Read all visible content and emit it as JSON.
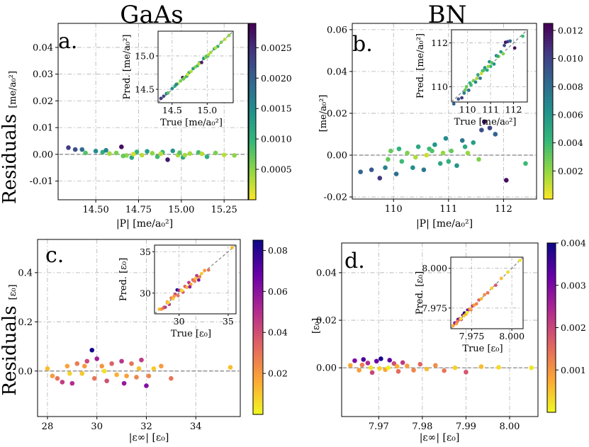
{
  "figure": {
    "col_titles": [
      "GaAs",
      "BN"
    ],
    "ylabel_main": "Residuals",
    "ylabel_P_unit": "[me/a₀²]",
    "ylabel_E_unit": "[ε₀]",
    "xlabel_P": "|P| [me/a₀²]",
    "xlabel_E": "|ε∞| [ε₀]",
    "inset_xlabel_P": "True [me/a₀²]",
    "inset_ylabel_P": "Pred. [me/a₀²]",
    "inset_xlabel_E": "True [ε₀]",
    "inset_ylabel_E": "Pred. [ε₀]",
    "colormaps": {
      "viridis_r": [
        "#fde725",
        "#90d743",
        "#35b779",
        "#21918c",
        "#31688e",
        "#443983",
        "#440154"
      ],
      "plasma_r": [
        "#f0f921",
        "#fca636",
        "#e16462",
        "#b12a90",
        "#6a00a8",
        "#0d0887"
      ]
    },
    "grid_color": "#b0b0b0",
    "zero_line_color": "#808080"
  },
  "chart_data": [
    {
      "panel": "a.",
      "type": "scatter",
      "material": "GaAs",
      "cmap": "viridis_r",
      "title": "GaAs",
      "xlabel": "|P| [me/a₀²]",
      "ylabel": "Residuals [me/a₀²]",
      "xlim": [
        14.28,
        15.39
      ],
      "ylim": [
        -0.017,
        0.049
      ],
      "xticks": [
        14.5,
        14.75,
        15.0,
        15.25
      ],
      "xtick_labels": [
        "14.50",
        "14.75",
        "15.00",
        "15.25"
      ],
      "yticks": [
        -0.01,
        0.0,
        0.01,
        0.02,
        0.03,
        0.04
      ],
      "ytick_labels": [
        "-0.01",
        "0.00",
        "0.01",
        "0.02",
        "0.03",
        "0.04"
      ],
      "colorbar": {
        "range": [
          0.0,
          0.0029
        ],
        "ticks": [
          0.0005,
          0.001,
          0.0015,
          0.002,
          0.0025
        ],
        "tick_labels": [
          "0.0005",
          "0.0010",
          "0.0015",
          "0.0020",
          "0.0025"
        ]
      },
      "series": [
        {
          "name": "residuals",
          "x": [
            14.34,
            14.38,
            14.42,
            14.44,
            14.5,
            14.54,
            14.58,
            14.62,
            14.65,
            14.68,
            14.71,
            14.74,
            14.77,
            14.8,
            14.83,
            14.86,
            14.89,
            14.92,
            14.95,
            14.98,
            15.01,
            15.05,
            15.1,
            15.15,
            15.2,
            15.25,
            15.31,
            14.56,
            14.66,
            14.72,
            14.88,
            14.99,
            15.02,
            15.12
          ],
          "y": [
            0.0025,
            0.0018,
            0.0018,
            0.0005,
            0.0012,
            0.0008,
            0.0003,
            0.0005,
            0.0028,
            -0.0004,
            -0.0012,
            0.0009,
            -0.0003,
            0.0011,
            0.0004,
            -0.0009,
            0.0008,
            -0.002,
            0.0013,
            -0.0003,
            -0.0011,
            0.0003,
            0.0007,
            -0.0009,
            0.0005,
            -0.0002,
            -0.0004,
            0.0015,
            -0.0006,
            0.0001,
            0.0002,
            0.0006,
            -0.0003,
            0.0002
          ],
          "c": [
            0.0024,
            0.0022,
            0.0019,
            0.0008,
            0.0015,
            0.0011,
            0.0004,
            0.0006,
            0.0028,
            0.0005,
            0.0012,
            0.001,
            0.0003,
            0.0013,
            0.0005,
            0.0009,
            0.001,
            0.0027,
            0.0014,
            0.0004,
            0.0012,
            0.0004,
            0.0009,
            0.0011,
            0.0006,
            0.0003,
            0.0005,
            0.0016,
            0.0007,
            0.0002,
            0.0003,
            0.0008,
            0.0004,
            0.0003
          ]
        }
      ],
      "inset": {
        "type": "scatter",
        "xlabel": "True [me/a₀²]",
        "ylabel": "Pred. [me/a₀²]",
        "xlim": [
          14.3,
          15.37
        ],
        "ylim": [
          14.3,
          15.37
        ],
        "xticks": [
          14.5,
          15.0
        ],
        "xtick_labels": [
          "14.5",
          "15.0"
        ],
        "yticks": [
          14.5,
          15.0
        ],
        "ytick_labels": [
          "14.5",
          "15.0"
        ]
      }
    },
    {
      "panel": "b.",
      "type": "scatter",
      "material": "BN",
      "cmap": "viridis_r",
      "title": "BN",
      "xlabel": "|P| [me/a₀²]",
      "ylabel": "[me/a₀²]",
      "xlim": [
        109.25,
        112.6
      ],
      "ylim": [
        -0.021,
        0.063
      ],
      "xticks": [
        110,
        111,
        112
      ],
      "xtick_labels": [
        "110",
        "111",
        "112"
      ],
      "yticks": [
        -0.02,
        0.0,
        0.02,
        0.04,
        0.06
      ],
      "ytick_labels": [
        "-0.02",
        "0.00",
        "0.02",
        "0.04",
        "0.06"
      ],
      "colorbar": {
        "range": [
          0.0,
          0.0125
        ],
        "ticks": [
          0.002,
          0.004,
          0.006,
          0.008,
          0.01,
          0.012
        ],
        "tick_labels": [
          "0.002",
          "0.004",
          "0.006",
          "0.008",
          "0.010",
          "0.012"
        ]
      },
      "series": [
        {
          "name": "residuals",
          "x": [
            109.4,
            109.6,
            109.75,
            109.85,
            109.95,
            110.05,
            110.15,
            110.25,
            110.35,
            110.45,
            110.55,
            110.65,
            110.75,
            110.85,
            110.95,
            111.05,
            111.15,
            111.25,
            111.35,
            111.45,
            111.6,
            111.75,
            111.85,
            112.05,
            112.4,
            109.9,
            110.1,
            110.4,
            110.7,
            111.0,
            111.3,
            111.55,
            111.65,
            110.6,
            110.9
          ],
          "y": [
            -0.008,
            -0.007,
            -0.011,
            -0.006,
            0.002,
            -0.009,
            -0.003,
            0.001,
            -0.006,
            0.004,
            -0.007,
            0.003,
            0.005,
            -0.004,
            0.008,
            0.002,
            -0.005,
            0.007,
            0.001,
            0.006,
            0.012,
            0.013,
            0.01,
            -0.012,
            -0.004,
            -0.002,
            0.003,
            -0.001,
            0.002,
            -0.003,
            0.004,
            -0.002,
            0.016,
            0.0,
            0.001
          ],
          "c": [
            0.0085,
            0.009,
            0.0105,
            0.007,
            0.003,
            0.008,
            0.004,
            0.0025,
            0.0065,
            0.005,
            0.0075,
            0.004,
            0.006,
            0.005,
            0.0065,
            0.003,
            0.006,
            0.0075,
            0.002,
            0.0055,
            0.0095,
            0.01,
            0.0085,
            0.012,
            0.004,
            0.003,
            0.0045,
            0.0015,
            0.0035,
            0.0045,
            0.005,
            0.0025,
            0.0118,
            0.001,
            0.002
          ]
        }
      ],
      "inset": {
        "type": "scatter",
        "xlabel": "True [me/a₀²]",
        "ylabel": "Pred. [me/a₀²]",
        "xlim": [
          109.3,
          112.6
        ],
        "ylim": [
          109.3,
          112.6
        ],
        "xticks": [
          110,
          111,
          112
        ],
        "xtick_labels": [
          "110",
          "111",
          "112"
        ],
        "yticks": [
          110,
          112
        ],
        "ytick_labels": [
          "110",
          "112"
        ]
      }
    },
    {
      "panel": "c.",
      "type": "scatter",
      "material": "GaAs",
      "cmap": "plasma_r",
      "xlabel": "|ε∞| [ε₀]",
      "ylabel": "Residuals [ε₀]",
      "xlim": [
        27.6,
        35.8
      ],
      "ylim": [
        -0.185,
        0.535
      ],
      "xticks": [
        28,
        30,
        32,
        34
      ],
      "xtick_labels": [
        "28",
        "30",
        "32",
        "34"
      ],
      "yticks": [
        0.0,
        0.2,
        0.4
      ],
      "ytick_labels": [
        "0.0",
        "0.2",
        "0.4"
      ],
      "colorbar": {
        "range": [
          0.0,
          0.085
        ],
        "ticks": [
          0.02,
          0.04,
          0.06,
          0.08
        ],
        "tick_labels": [
          "0.02",
          "0.04",
          "0.06",
          "0.08"
        ]
      },
      "series": [
        {
          "name": "residuals",
          "x": [
            28.0,
            28.2,
            28.4,
            28.6,
            28.8,
            29.0,
            29.2,
            29.4,
            29.6,
            29.8,
            29.9,
            30.0,
            30.2,
            30.4,
            30.6,
            30.8,
            31.0,
            31.2,
            31.4,
            31.6,
            31.8,
            32.0,
            32.3,
            32.6,
            33.0,
            35.4,
            28.9,
            29.5,
            30.3,
            31.1,
            31.7,
            32.1
          ],
          "y": [
            0.01,
            -0.02,
            -0.03,
            -0.045,
            0.02,
            -0.05,
            0.03,
            -0.01,
            0.04,
            0.085,
            -0.03,
            0.05,
            0.02,
            -0.04,
            0.03,
            -0.015,
            0.04,
            -0.02,
            0.03,
            -0.025,
            0.045,
            -0.06,
            0.01,
            0.02,
            -0.03,
            0.015,
            -0.01,
            0.02,
            0.0,
            -0.05,
            0.01,
            -0.02
          ],
          "c": [
            0.012,
            0.02,
            0.03,
            0.045,
            0.018,
            0.05,
            0.028,
            0.01,
            0.042,
            0.084,
            0.03,
            0.055,
            0.022,
            0.04,
            0.035,
            0.015,
            0.048,
            0.018,
            0.03,
            0.026,
            0.046,
            0.062,
            0.01,
            0.02,
            0.03,
            0.012,
            0.008,
            0.02,
            0.005,
            0.058,
            0.012,
            0.025
          ]
        }
      ],
      "inset": {
        "type": "scatter",
        "xlabel": "True [ε₀]",
        "ylabel": "Pred. [ε₀]",
        "xlim": [
          27.5,
          35.8
        ],
        "ylim": [
          27.5,
          35.8
        ],
        "xticks": [
          30,
          35
        ],
        "xtick_labels": [
          "30",
          "35"
        ],
        "yticks": [
          30,
          35
        ],
        "ytick_labels": [
          "30",
          "35"
        ]
      }
    },
    {
      "panel": "d.",
      "type": "scatter",
      "material": "BN",
      "cmap": "plasma_r",
      "xlabel": "|ε∞| [ε₀]",
      "ylabel": "[ε₀]",
      "xlim": [
        7.9615,
        8.0065
      ],
      "ylim": [
        -0.0205,
        0.0525
      ],
      "xticks": [
        7.97,
        7.98,
        7.99,
        8.0
      ],
      "xtick_labels": [
        "7.97",
        "7.98",
        "7.99",
        "8.00"
      ],
      "yticks": [
        0.0,
        0.02,
        0.04
      ],
      "ytick_labels": [
        "0.00",
        "0.02",
        "0.04"
      ],
      "colorbar": {
        "range": [
          0.0,
          0.004
        ],
        "ticks": [
          0.001,
          0.002,
          0.003,
          0.004
        ],
        "tick_labels": [
          "0.001",
          "0.002",
          "0.003",
          "0.004"
        ]
      },
      "series": [
        {
          "name": "residuals",
          "x": [
            7.9635,
            7.9645,
            7.9655,
            7.9665,
            7.9675,
            7.9685,
            7.9695,
            7.9705,
            7.9715,
            7.9725,
            7.9735,
            7.9745,
            7.9755,
            7.9765,
            7.978,
            7.9795,
            7.981,
            7.983,
            7.985,
            7.9875,
            7.99,
            7.9935,
            7.9975,
            8.005,
            7.9662,
            7.9702,
            7.9742,
            7.9722,
            7.9682
          ],
          "y": [
            0.001,
            0.003,
            -0.001,
            0.0035,
            0.002,
            -0.002,
            0.0028,
            0.0038,
            -0.0008,
            0.0032,
            0.0018,
            -0.0015,
            0.0022,
            0.0008,
            -0.001,
            0.0015,
            -0.0005,
            0.001,
            -0.0012,
            0.0,
            -0.0018,
            0.0005,
            0.0002,
            0.0,
            0.0012,
            -0.0003,
            0.0006,
            0.0,
            0.0
          ],
          "c": [
            0.0008,
            0.003,
            0.0009,
            0.0035,
            0.0024,
            0.002,
            0.0032,
            0.0039,
            0.0008,
            0.0033,
            0.0019,
            0.0015,
            0.0022,
            0.0009,
            0.0012,
            0.0016,
            0.0006,
            0.0011,
            0.0014,
            0.0004,
            0.0018,
            0.0006,
            0.0003,
            0.0002,
            0.0013,
            0.0004,
            0.0007,
            0.0001,
            0.0002
          ]
        }
      ],
      "inset": {
        "type": "scatter",
        "xlabel": "True [ε₀]",
        "ylabel": "Pred. [ε₀]",
        "xlim": [
          7.962,
          8.007
        ],
        "ylim": [
          7.962,
          8.007
        ],
        "xticks": [
          7.975,
          8.0
        ],
        "xtick_labels": [
          "7.975",
          "8.000"
        ],
        "yticks": [
          7.975,
          8.0
        ],
        "ytick_labels": [
          "7.975",
          "8.000"
        ]
      }
    }
  ]
}
